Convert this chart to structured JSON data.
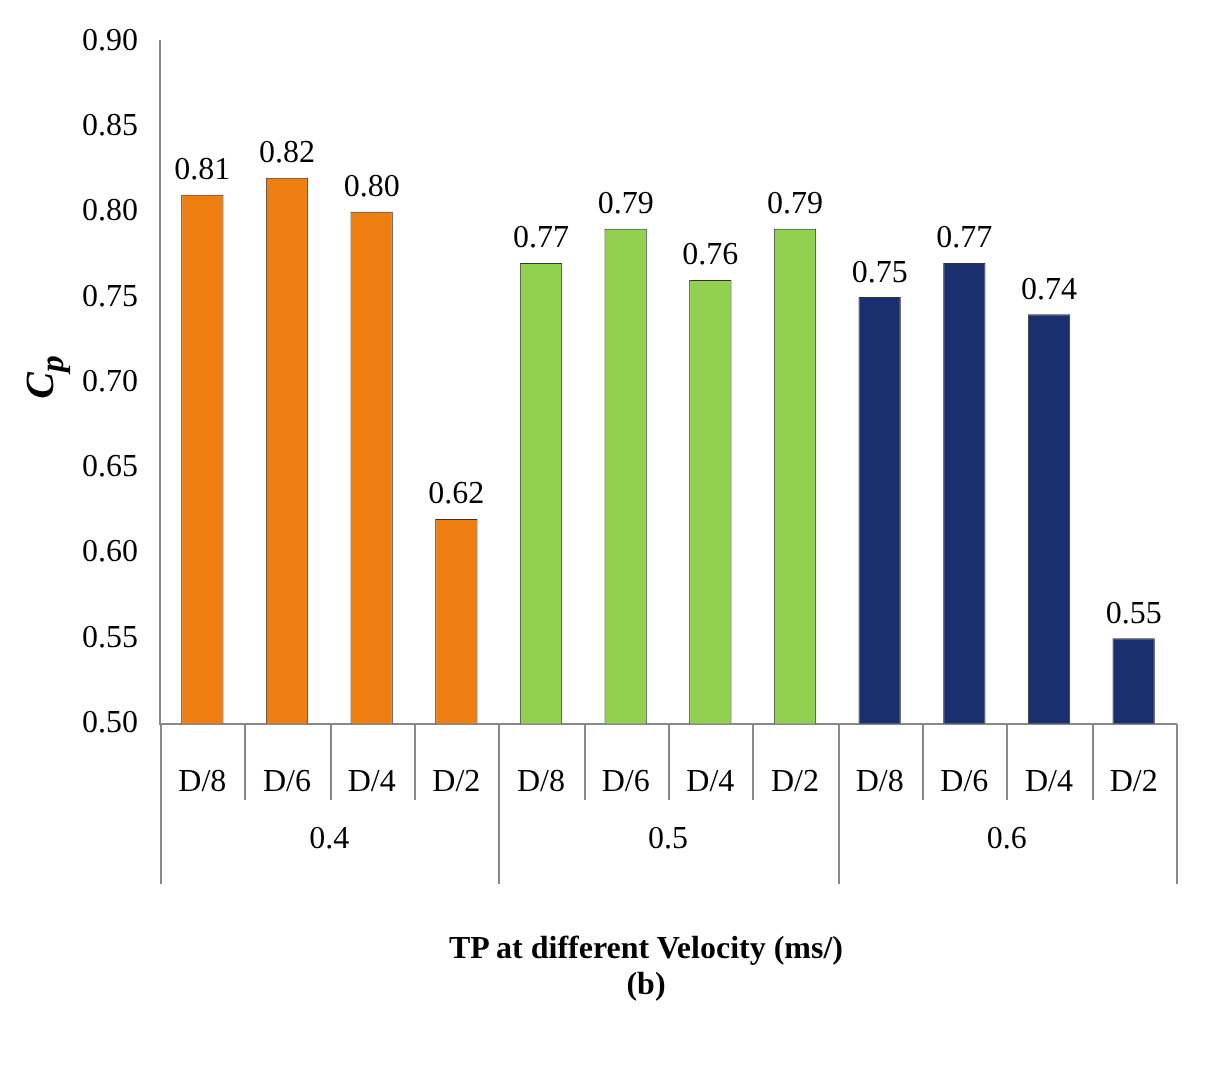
{
  "chart_data": {
    "type": "bar",
    "xlabel": "TP at different Velocity (ms/)",
    "ylabel": "C$_{p}$",
    "categories": [
      "D/8",
      "D/6",
      "D/4",
      "D/2",
      "D/8",
      "D/6",
      "D/4",
      "D/2",
      "D/8",
      "D/6",
      "D/4",
      "D/2"
    ],
    "values": [
      0.81,
      0.82,
      0.8,
      0.62,
      0.77,
      0.79,
      0.76,
      0.79,
      0.75,
      0.77,
      0.74,
      0.55
    ],
    "colors": [
      "#f07f12",
      "#f07f12",
      "#f07f12",
      "#f07f12",
      "#92d050",
      "#92d050",
      "#92d050",
      "#92d050",
      "#1a2f6e",
      "#1a2f6e",
      "#1a2f6e",
      "#1a2f6e"
    ],
    "value_labels": [
      "0.81",
      "0.82",
      "0.80",
      "0.62",
      "0.77",
      "0.79",
      "0.76",
      "0.79",
      "0.75",
      "0.77",
      "0.74",
      "0.55"
    ],
    "ylim": [
      0.5,
      0.9
    ],
    "yticks": [
      {
        "value": 0.5,
        "label": "0.50"
      },
      {
        "value": 0.55,
        "label": "0.55"
      },
      {
        "value": 0.6,
        "label": "0.60"
      },
      {
        "value": 0.65,
        "label": "0.65"
      },
      {
        "value": 0.7,
        "label": "0.70"
      },
      {
        "value": 0.75,
        "label": "0.75"
      },
      {
        "value": 0.8,
        "label": "0.80"
      },
      {
        "value": 0.85,
        "label": "0.85"
      },
      {
        "value": 0.9,
        "label": "0.90"
      }
    ],
    "grid": false,
    "legend": false,
    "annotations": [
      "0.4",
      "0.5",
      "0.6",
      "(b)"
    ]
  }
}
